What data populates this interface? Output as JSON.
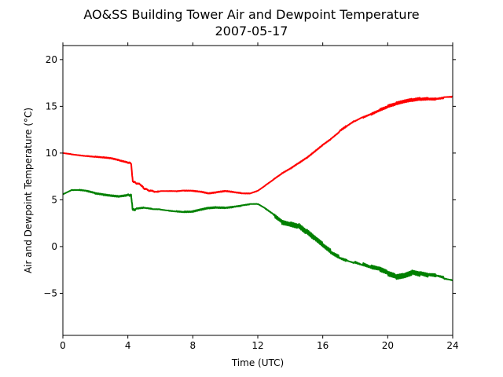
{
  "chart_data": {
    "type": "line",
    "title": "AO&SS Building Tower Air and Dewpoint Temperature",
    "subtitle": "2007-05-17",
    "xlabel": "Time (UTC)",
    "ylabel": "Air and Dewpoint Temperature (°C)",
    "xlim": [
      0,
      24
    ],
    "ylim": [
      -9.5,
      21.5
    ],
    "xticks": [
      0,
      4,
      8,
      12,
      16,
      20,
      24
    ],
    "yticks": [
      -5,
      0,
      5,
      10,
      15,
      20
    ],
    "grid": false,
    "legend": "none",
    "series": [
      {
        "color": "#ff0000",
        "x": [
          0,
          0.5,
          1,
          1.5,
          2,
          2.5,
          3,
          3.5,
          4,
          4.2,
          4.3,
          4.5,
          4.8,
          5,
          5.3,
          5.6,
          6,
          6.5,
          7,
          7.5,
          8,
          8.5,
          9,
          9.5,
          10,
          10.5,
          11,
          11.5,
          12,
          12.5,
          13,
          13.5,
          14,
          14.5,
          15,
          15.5,
          16,
          16.5,
          17,
          17.5,
          18,
          18.5,
          19,
          19.5,
          20,
          20.5,
          21,
          21.5,
          22,
          22.5,
          23,
          23.5,
          24
        ],
        "y": [
          10.0,
          9.9,
          9.8,
          9.7,
          9.6,
          9.5,
          9.4,
          9.2,
          9.0,
          8.9,
          7.0,
          6.8,
          6.6,
          6.2,
          6.0,
          5.9,
          5.9,
          5.9,
          5.9,
          6.0,
          6.0,
          5.9,
          5.7,
          5.8,
          5.9,
          5.8,
          5.7,
          5.7,
          6.0,
          6.6,
          7.2,
          7.8,
          8.3,
          8.9,
          9.5,
          10.2,
          10.9,
          11.5,
          12.2,
          12.8,
          13.4,
          13.9,
          14.3,
          14.7,
          15.0,
          15.2,
          15.4,
          15.6,
          15.8,
          15.9,
          15.9,
          16.0,
          16.0
        ]
      },
      {
        "color": "#008000",
        "x": [
          0,
          0.5,
          1,
          1.5,
          2,
          2.5,
          3,
          3.5,
          4,
          4.2,
          4.3,
          4.5,
          5,
          5.5,
          6,
          6.5,
          7,
          7.5,
          8,
          8.5,
          9,
          9.5,
          10,
          10.5,
          11,
          11.5,
          12,
          12.5,
          13,
          13.5,
          14,
          14.5,
          15,
          15.5,
          16,
          16.5,
          17,
          17.5,
          18,
          18.5,
          19,
          19.5,
          20,
          20.5,
          21,
          21.5,
          22,
          22.5,
          23,
          23.5,
          24
        ],
        "y": [
          5.6,
          6.0,
          6.0,
          5.9,
          5.7,
          5.6,
          5.5,
          5.4,
          5.5,
          5.5,
          3.9,
          4.0,
          4.1,
          4.0,
          4.0,
          3.9,
          3.8,
          3.7,
          3.7,
          3.9,
          4.1,
          4.2,
          4.2,
          4.3,
          4.4,
          4.5,
          4.5,
          4.0,
          3.4,
          2.8,
          2.6,
          2.3,
          1.5,
          0.7,
          0.0,
          -0.6,
          -1.0,
          -1.3,
          -1.6,
          -2.0,
          -2.4,
          -2.6,
          -2.9,
          -3.1,
          -2.9,
          -2.6,
          -2.9,
          -3.2,
          -3.3,
          -3.5,
          -3.6
        ]
      }
    ]
  }
}
